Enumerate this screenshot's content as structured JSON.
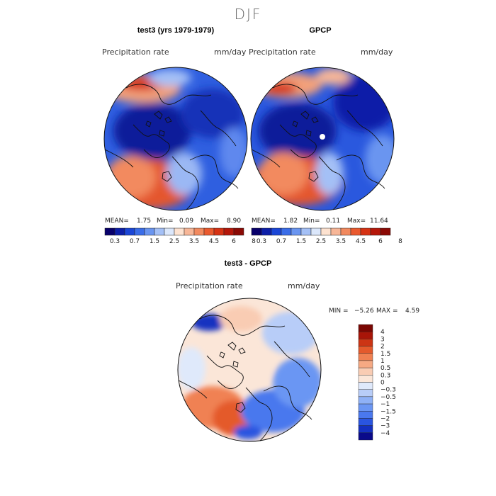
{
  "figure": {
    "season": "DJF"
  },
  "panels": {
    "model": {
      "title": "test3 (yrs 1979-1979)",
      "variable": "Precipitation rate",
      "units": "mm/day",
      "stats": {
        "mean_label": "MEAN=",
        "mean": "1.75",
        "min_label": "Min=",
        "min": "0.09",
        "max_label": "Max=",
        "max": "8.90"
      }
    },
    "obs": {
      "title": "GPCP",
      "variable": "Precipitation rate",
      "units": "mm/day",
      "stats": {
        "mean_label": "MEAN=",
        "mean": "1.82",
        "min_label": "Min=",
        "min": "0.11",
        "max_label": "Max=",
        "max": "11.64"
      }
    },
    "diff": {
      "title": "test3 - GPCP",
      "variable": "Precipitation rate",
      "units": "mm/day",
      "stats": {
        "min_label": "MIN =",
        "min": "−5.26",
        "max_label": "MAX =",
        "max": "4.59"
      }
    }
  },
  "chart_data": [
    {
      "type": "heatmap",
      "projection": "north-polar-stereographic",
      "title": "test3 (yrs 1979-1979)",
      "variable": "Precipitation rate",
      "units": "mm/day",
      "mean": 1.75,
      "min": 0.09,
      "max": 8.9,
      "colorbar_levels": [
        0.3,
        0.7,
        1.5,
        2.5,
        3.5,
        4.5,
        6,
        8
      ],
      "colorbar_tick_labels": [
        "0.3",
        "0.7",
        "1.5",
        "2.5",
        "3.5",
        "4.5",
        "6",
        "8"
      ],
      "colorbar_colors": [
        "#08006b",
        "#0d1fa8",
        "#1b46d6",
        "#3a6de8",
        "#6a95f0",
        "#a4c0f6",
        "#dbe7fb",
        "#fde2d0",
        "#f7b697",
        "#f28a5f",
        "#ea5a2f",
        "#d63314",
        "#b5170a",
        "#8b0a05"
      ]
    },
    {
      "type": "heatmap",
      "projection": "north-polar-stereographic",
      "title": "GPCP",
      "variable": "Precipitation rate",
      "units": "mm/day",
      "mean": 1.82,
      "min": 0.11,
      "max": 11.64,
      "colorbar_levels": [
        0.3,
        0.7,
        1.5,
        2.5,
        3.5,
        4.5,
        6,
        8
      ],
      "colorbar_tick_labels": [
        "0.3",
        "0.7",
        "1.5",
        "2.5",
        "3.5",
        "4.5",
        "6",
        "8"
      ],
      "colorbar_colors": [
        "#08006b",
        "#0d1fa8",
        "#1b46d6",
        "#3a6de8",
        "#6a95f0",
        "#a4c0f6",
        "#dbe7fb",
        "#fde2d0",
        "#f7b697",
        "#f28a5f",
        "#ea5a2f",
        "#d63314",
        "#b5170a",
        "#8b0a05"
      ]
    },
    {
      "type": "heatmap",
      "projection": "north-polar-stereographic",
      "title": "test3 - GPCP",
      "variable": "Precipitation rate",
      "units": "mm/day",
      "min": -5.26,
      "max": 4.59,
      "colorbar_levels": [
        -4,
        -3,
        -2,
        -1.5,
        -1,
        -0.5,
        -0.3,
        0,
        0.3,
        0.5,
        1,
        1.5,
        2,
        3,
        4
      ],
      "colorbar_tick_labels": [
        "−4",
        "−3",
        "−2",
        "−1.5",
        "−1",
        "−0.5",
        "−0.3",
        "0",
        "0.3",
        "0.5",
        "1",
        "1.5",
        "2",
        "3",
        "4"
      ],
      "colorbar_colors": [
        "#0a0a8a",
        "#1430c0",
        "#2a55e0",
        "#4a78ee",
        "#6b96f3",
        "#8fb1f6",
        "#b8cdf8",
        "#dfe9fb",
        "#fbe6d8",
        "#f9ccb3",
        "#f6a983",
        "#f08152",
        "#e45a2c",
        "#cc3414",
        "#a81508",
        "#7a0703"
      ]
    }
  ]
}
